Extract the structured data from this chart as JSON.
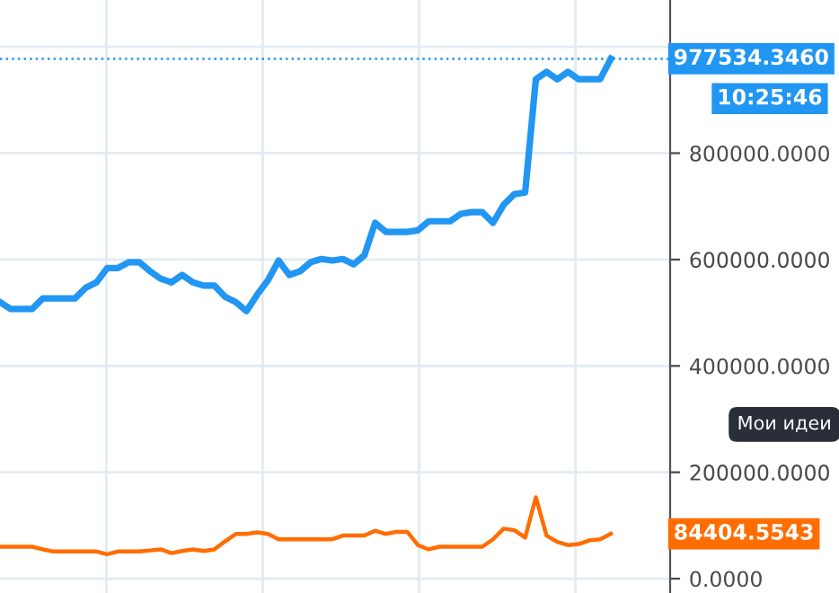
{
  "chart_data": {
    "type": "line",
    "categories": [
      null,
      null,
      null,
      null,
      null,
      null,
      null,
      null,
      null,
      null,
      null,
      null,
      null,
      null,
      null,
      null,
      null,
      null,
      null,
      null,
      null,
      null,
      null,
      null,
      null,
      null,
      null,
      null,
      null,
      null,
      null,
      null,
      null,
      null,
      null,
      null,
      null,
      null,
      null,
      null,
      null,
      null,
      null,
      null,
      null,
      null,
      null,
      null,
      null,
      null,
      null,
      null,
      null,
      null,
      null,
      null,
      null,
      null
    ],
    "series": [
      {
        "color": "#2196f3",
        "values": [
          520000,
          507000,
          507000,
          507000,
          527000,
          527000,
          527000,
          527000,
          547000,
          557000,
          584000,
          584000,
          595000,
          595000,
          578000,
          564000,
          557000,
          571000,
          557000,
          551000,
          551000,
          530000,
          520000,
          503000,
          534000,
          561000,
          598000,
          571000,
          578000,
          595000,
          601000,
          598000,
          601000,
          591000,
          608000,
          669000,
          652000,
          652000,
          652000,
          655000,
          672000,
          672000,
          672000,
          686000,
          689000,
          689000,
          669000,
          703000,
          723000,
          726000,
          939000,
          953000,
          939000,
          953000,
          939000,
          939000,
          939000,
          977534.346
        ]
      },
      {
        "color": "#ff6d00",
        "values": [
          60000,
          60000,
          60000,
          60000,
          55000,
          51000,
          51000,
          51000,
          51000,
          51000,
          46000,
          51000,
          51000,
          51000,
          53000,
          55000,
          48000,
          52000,
          55000,
          52000,
          55000,
          70000,
          84000,
          84000,
          87000,
          84000,
          74000,
          74000,
          74000,
          74000,
          74000,
          74000,
          81000,
          81000,
          81000,
          90000,
          84000,
          88000,
          88000,
          63000,
          55000,
          60000,
          60000,
          60000,
          60000,
          60000,
          74000,
          94000,
          91000,
          77000,
          153000,
          81000,
          69000,
          63000,
          65000,
          72000,
          74000,
          84404.5543
        ]
      }
    ],
    "ylim": [
      -27000,
      1088000
    ],
    "yticks": [
      {
        "value": 0,
        "label": "0.0000"
      },
      {
        "value": 200000,
        "label": "200000.0000"
      },
      {
        "value": 400000,
        "label": "400000.0000"
      },
      {
        "value": 600000,
        "label": "600000.0000"
      },
      {
        "value": 800000,
        "label": "800000.0000"
      },
      {
        "value": 1000000,
        "label": null
      }
    ],
    "ref_lines": [
      {
        "axis": "y",
        "value": 977534.346,
        "color": "#2196f3",
        "line_style": "dotted"
      }
    ],
    "annotations": [
      "977534.3460",
      "10:25:46",
      "Мои идеи",
      "84404.5543"
    ],
    "grid": true,
    "tick_labels": "y",
    "legend": false,
    "marker": "none",
    "line_style": "solid"
  }
}
